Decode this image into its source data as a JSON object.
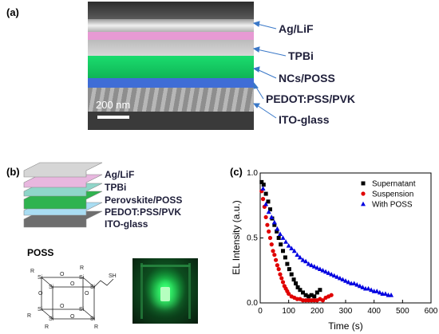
{
  "panel_a": {
    "label": "(a)",
    "scale_bar": "200 nm",
    "layers": [
      "Ag/LiF",
      "TPBi",
      "NCs/POSS",
      "PEDOT:PSS/PVK",
      "ITO-glass"
    ]
  },
  "panel_b": {
    "label": "(b)",
    "layers": [
      "Ag/LiF",
      "TPBi",
      "Perovskite/POSS",
      "PEDOT:PSS/PVK",
      "ITO-glass"
    ],
    "layer_colors": [
      "#d6d6d6",
      "#e8b7df",
      "#8fd6c9",
      "#2fb34f",
      "#a9ddf2",
      "#6e6e6e"
    ],
    "poss_title": "POSS",
    "poss_atoms": {
      "si": "Si",
      "o": "O",
      "r": "R",
      "sh": "SH"
    }
  },
  "panel_c": {
    "label": "(c)",
    "chart_data": {
      "type": "scatter",
      "xlabel": "Time (s)",
      "ylabel": "EL Intensity (a.u.)",
      "xlim": [
        0,
        600
      ],
      "ylim": [
        0,
        1.0
      ],
      "xticks": [
        0,
        100,
        200,
        300,
        400,
        500,
        600
      ],
      "yticks": [
        0.0,
        0.5,
        1.0
      ],
      "legend_position": "top-right",
      "series": [
        {
          "name": "Supernatant",
          "marker": "square",
          "color": "#000000",
          "x": [
            5,
            12,
            20,
            28,
            35,
            42,
            50,
            58,
            65,
            72,
            80,
            88,
            95,
            102,
            110,
            118,
            125,
            132,
            140,
            150,
            160,
            170,
            180,
            190,
            200,
            210
          ],
          "y": [
            0.93,
            0.91,
            0.84,
            0.78,
            0.72,
            0.65,
            0.6,
            0.55,
            0.5,
            0.45,
            0.4,
            0.35,
            0.3,
            0.26,
            0.22,
            0.18,
            0.15,
            0.12,
            0.1,
            0.08,
            0.06,
            0.05,
            0.06,
            0.05,
            0.08,
            0.1
          ]
        },
        {
          "name": "Suspension",
          "marker": "circle",
          "color": "#e00000",
          "x": [
            5,
            10,
            15,
            20,
            25,
            30,
            35,
            40,
            45,
            50,
            55,
            60,
            65,
            70,
            75,
            80,
            85,
            90,
            95,
            100,
            110,
            120,
            130,
            140,
            150,
            160,
            170,
            180,
            190,
            200,
            210,
            220,
            230,
            240,
            250
          ],
          "y": [
            0.86,
            0.8,
            0.74,
            0.66,
            0.6,
            0.55,
            0.5,
            0.45,
            0.4,
            0.37,
            0.33,
            0.29,
            0.26,
            0.22,
            0.19,
            0.16,
            0.13,
            0.11,
            0.09,
            0.07,
            0.05,
            0.04,
            0.03,
            0.03,
            0.02,
            0.02,
            0.02,
            0.02,
            0.02,
            0.02,
            0.03,
            0.02,
            0.04,
            0.05,
            0.06
          ]
        },
        {
          "name": "With POSS",
          "marker": "triangle",
          "color": "#0000e0",
          "x": [
            10,
            20,
            30,
            40,
            50,
            60,
            70,
            80,
            90,
            100,
            110,
            120,
            130,
            140,
            150,
            160,
            170,
            180,
            190,
            200,
            210,
            220,
            230,
            240,
            250,
            260,
            270,
            280,
            290,
            300,
            310,
            320,
            330,
            340,
            350,
            360,
            370,
            380,
            390,
            400,
            410,
            420,
            430,
            440,
            450,
            460
          ],
          "y": [
            0.88,
            0.76,
            0.7,
            0.66,
            0.62,
            0.57,
            0.53,
            0.5,
            0.47,
            0.44,
            0.42,
            0.4,
            0.37,
            0.35,
            0.33,
            0.32,
            0.3,
            0.29,
            0.28,
            0.27,
            0.26,
            0.25,
            0.24,
            0.23,
            0.22,
            0.21,
            0.2,
            0.19,
            0.18,
            0.17,
            0.16,
            0.15,
            0.15,
            0.14,
            0.13,
            0.12,
            0.11,
            0.11,
            0.1,
            0.09,
            0.09,
            0.08,
            0.07,
            0.07,
            0.06,
            0.06
          ]
        }
      ]
    }
  }
}
